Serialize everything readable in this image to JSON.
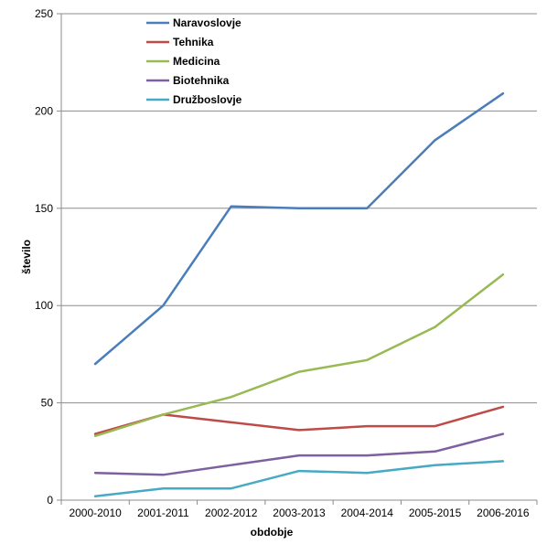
{
  "chart_data": {
    "type": "line",
    "title": "",
    "xlabel": "obdobje",
    "ylabel": "število",
    "categories": [
      "2000-2010",
      "2001-2011",
      "2002-2012",
      "2003-2013",
      "2004-2014",
      "2005-2015",
      "2006-2016"
    ],
    "ylim": [
      0,
      250
    ],
    "yticks": [
      0,
      50,
      100,
      150,
      200,
      250
    ],
    "grid": true,
    "legend_position": "top-left",
    "series": [
      {
        "name": "Naravoslovje",
        "color": "#4A7EBB",
        "values": [
          70,
          100,
          151,
          150,
          150,
          185,
          209
        ]
      },
      {
        "name": "Tehnika",
        "color": "#BE4B48",
        "values": [
          34,
          44,
          40,
          36,
          38,
          38,
          48
        ]
      },
      {
        "name": "Medicina",
        "color": "#98B954",
        "values": [
          33,
          44,
          53,
          66,
          72,
          89,
          116
        ]
      },
      {
        "name": "Biotehnika",
        "color": "#7D60A0",
        "values": [
          14,
          13,
          18,
          23,
          23,
          25,
          34
        ]
      },
      {
        "name": "Družboslovje",
        "color": "#46AAC5",
        "values": [
          2,
          6,
          6,
          15,
          14,
          18,
          20
        ]
      }
    ]
  }
}
